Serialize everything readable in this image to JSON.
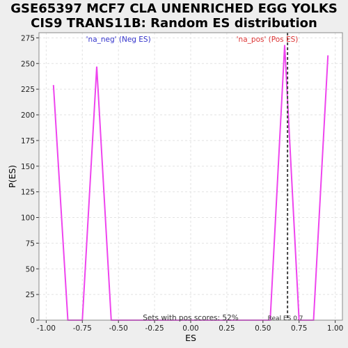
{
  "chart_data": {
    "type": "line",
    "title_lines": [
      "GSE65397 MCF7 CLA UNENRICHED EGG YOLKS",
      "CIS9 TRANS11B: Random ES distribution"
    ],
    "xlabel": "ES",
    "ylabel": "P(ES)",
    "xlim": [
      -1.05,
      1.05
    ],
    "ylim": [
      0,
      280
    ],
    "xticks": [
      "-1.00",
      "-0.75",
      "-0.50",
      "-0.25",
      "0.00",
      "0.25",
      "0.50",
      "0.75",
      "1.00"
    ],
    "xtick_values": [
      -1.0,
      -0.75,
      -0.5,
      -0.25,
      0.0,
      0.25,
      0.5,
      0.75,
      1.0
    ],
    "yticks": [
      "0",
      "25",
      "50",
      "75",
      "100",
      "125",
      "150",
      "175",
      "200",
      "225",
      "250",
      "275"
    ],
    "ytick_values": [
      0,
      25,
      50,
      75,
      100,
      125,
      150,
      175,
      200,
      225,
      250,
      275
    ],
    "grid": true,
    "series": [
      {
        "color": "#ee44ee",
        "x": [
          -0.95,
          -0.85,
          -0.75,
          -0.65,
          -0.55,
          -0.45,
          -0.35,
          -0.25,
          -0.15,
          -0.05,
          0.05,
          0.15,
          0.25,
          0.35,
          0.45,
          0.55,
          0.65,
          0.75,
          0.85,
          0.95
        ],
        "y": [
          229,
          0,
          0,
          247,
          0,
          0,
          0,
          0,
          0,
          0,
          0,
          0,
          0,
          0,
          0,
          0,
          268,
          0,
          0,
          258
        ]
      }
    ],
    "real_es": 0.67,
    "real_es_color": "#444444",
    "annotations": {
      "neg_label": "'na_neg' (Neg ES)",
      "neg_color": "#3333cc",
      "pos_label": "'na_pos' (Pos ES)",
      "pos_color": "#dd3333",
      "pos_scores_text": "Sets with pos scores: 52%",
      "real_es_label": "Real ES 0.7"
    }
  }
}
